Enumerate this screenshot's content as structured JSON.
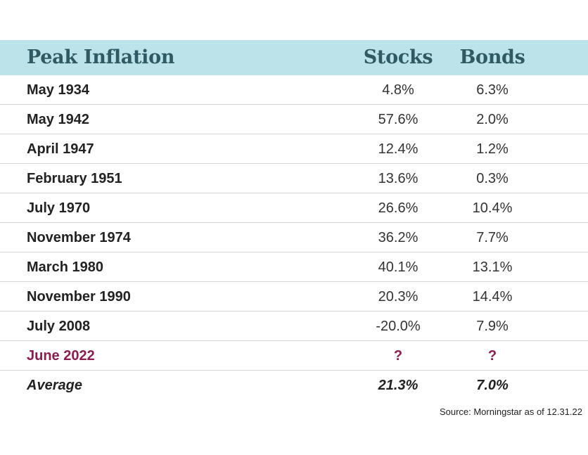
{
  "colors": {
    "header_bg": "#bde3ea",
    "header_text": "#2f5a63",
    "highlight_text": "#8a1e50",
    "row_divider": "#d4d4d4"
  },
  "chart_data": {
    "type": "table",
    "columns": [
      "Peak Inflation",
      "Stocks",
      "Bonds"
    ],
    "rows": [
      {
        "label": "May 1934",
        "stocks": "4.8%",
        "bonds": "6.3%"
      },
      {
        "label": "May 1942",
        "stocks": "57.6%",
        "bonds": "2.0%"
      },
      {
        "label": "April 1947",
        "stocks": "12.4%",
        "bonds": "1.2%"
      },
      {
        "label": "February 1951",
        "stocks": "13.6%",
        "bonds": "0.3%"
      },
      {
        "label": "July 1970",
        "stocks": "26.6%",
        "bonds": "10.4%"
      },
      {
        "label": "November 1974",
        "stocks": "36.2%",
        "bonds": "7.7%"
      },
      {
        "label": "March 1980",
        "stocks": "40.1%",
        "bonds": "13.1%"
      },
      {
        "label": "November 1990",
        "stocks": "20.3%",
        "bonds": "14.4%"
      },
      {
        "label": "July 2008",
        "stocks": "-20.0%",
        "bonds": "7.9%"
      },
      {
        "label": "June 2022",
        "stocks": "?",
        "bonds": "?"
      }
    ],
    "average": {
      "label": "Average",
      "stocks": "21.3%",
      "bonds": "7.0%"
    },
    "source": "Source: Morningstar as of 12.31.22"
  }
}
